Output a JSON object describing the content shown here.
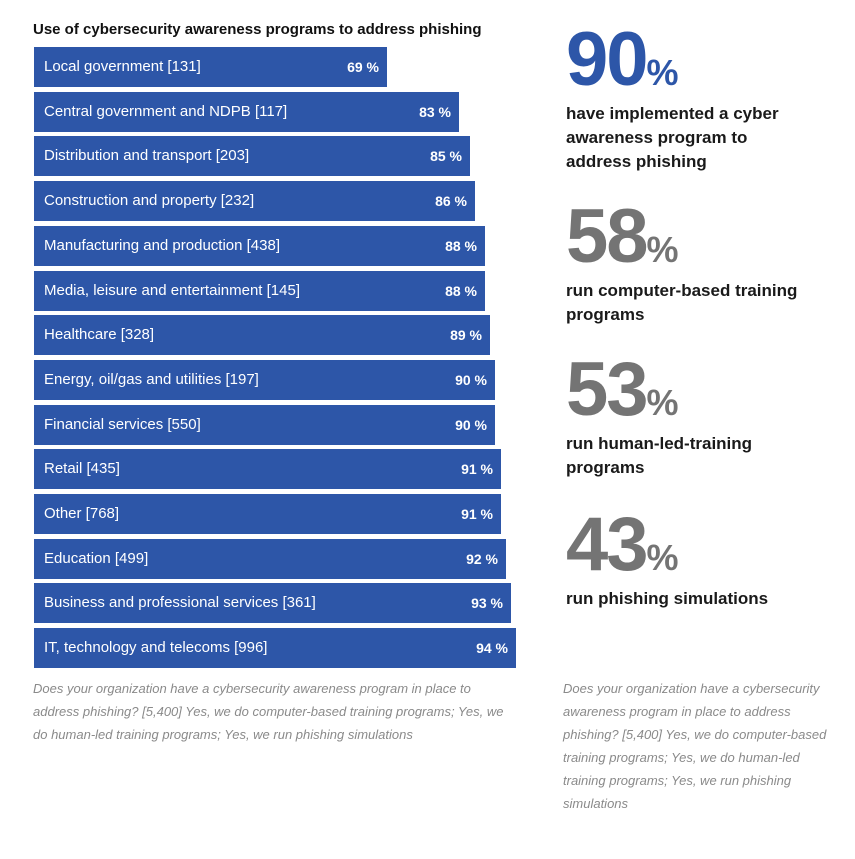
{
  "chart_data": {
    "type": "bar",
    "orientation": "horizontal",
    "title": "Use of cybersecurity awareness programs to address phishing",
    "categories": [
      "Local government [131]",
      "Central government and NDPB [117]",
      "Distribution and transport [203]",
      "Construction and property [232]",
      "Manufacturing and production [438]",
      "Media, leisure and entertainment [145]",
      "Healthcare [328]",
      "Energy, oil/gas and utilities [197]",
      "Financial services [550]",
      "Retail [435]",
      "Other [768]",
      "Education [499]",
      "Business and professional services [361]",
      "IT, technology and telecoms [996]"
    ],
    "values": [
      69,
      83,
      85,
      86,
      88,
      88,
      89,
      90,
      90,
      91,
      91,
      92,
      93,
      94
    ],
    "value_labels": [
      "69 %",
      "83 %",
      "85 %",
      "86 %",
      "88 %",
      "88 %",
      "89 %",
      "90 %",
      "90 %",
      "91 %",
      "91 %",
      "92 %",
      "93 %",
      "94 %"
    ],
    "bar_color": "#2d56a8"
  },
  "footnote_left": "Does your organization have a cybersecurity awareness program in place to address phishing? [5,400] Yes, we do computer-based training programs; Yes, we do human-led training programs; Yes, we run phishing simulations",
  "stats": [
    {
      "number": "90",
      "unit": "%",
      "text": "have implemented a cyber awareness program to address phishing",
      "color": "#2d56a8"
    },
    {
      "number": "58",
      "unit": "%",
      "text": "run computer-based training programs",
      "color": "#747474"
    },
    {
      "number": "53",
      "unit": "%",
      "text": "run human-led-training programs",
      "color": "#747474"
    },
    {
      "number": "43",
      "unit": "%",
      "text": "run phishing simulations",
      "color": "#747474"
    }
  ],
  "footnote_right": "Does your organization have a cybersecurity awareness program in place to address phishing? [5,400] Yes, we do computer-based training programs; Yes, we do human-led training programs; Yes, we run phishing simulations"
}
